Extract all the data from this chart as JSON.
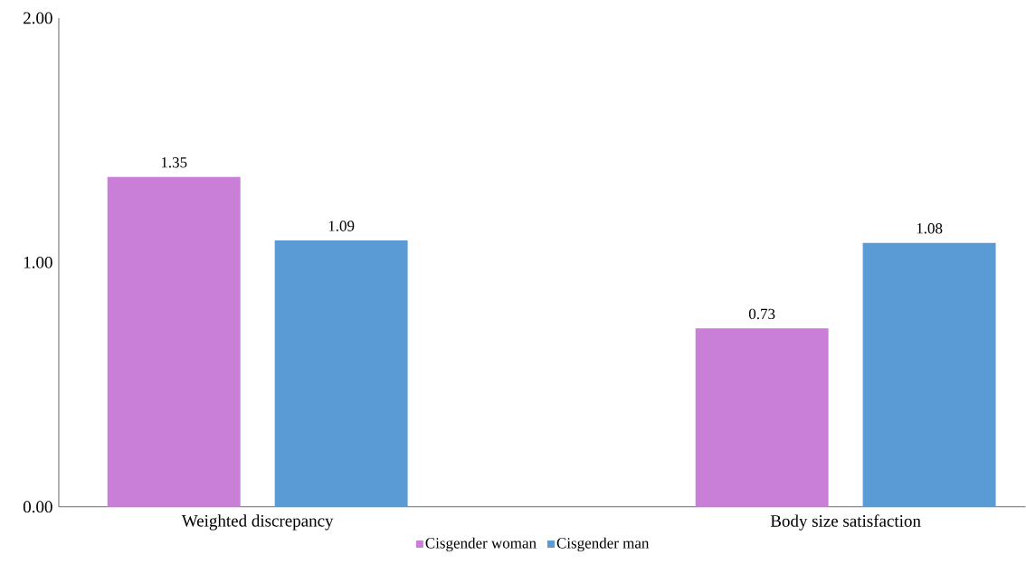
{
  "chart_data": {
    "type": "bar",
    "categories": [
      "Weighted discrepancy",
      "Body size satisfaction"
    ],
    "series": [
      {
        "name": "Cisgender woman",
        "color": "#c97fd8",
        "values": [
          1.35,
          0.73
        ],
        "value_labels": [
          "1.35",
          "0.73"
        ]
      },
      {
        "name": "Cisgender man",
        "color": "#5b9bd5",
        "values": [
          1.09,
          1.08
        ],
        "value_labels": [
          "1.09",
          "1.08"
        ]
      }
    ],
    "ylim": [
      0,
      2
    ],
    "yticks": [
      {
        "value": 0,
        "label": "0.00"
      },
      {
        "value": 1,
        "label": "1.00"
      },
      {
        "value": 2,
        "label": "2.00"
      }
    ],
    "grid": false,
    "legend": "bottom"
  }
}
